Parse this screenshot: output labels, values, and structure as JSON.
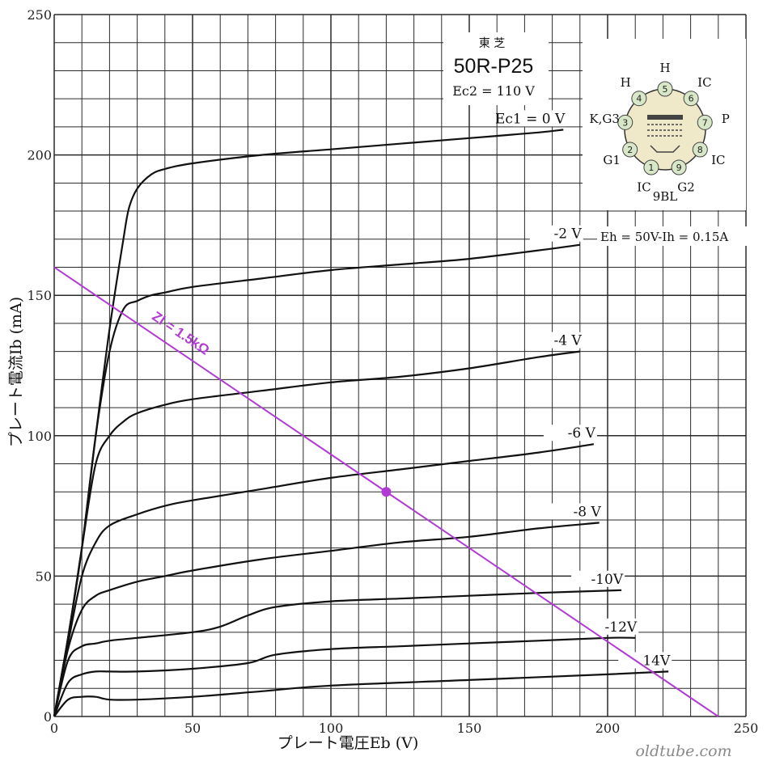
{
  "chart_data": {
    "type": "line",
    "header_brand": "東 芝",
    "title": "50R-P25",
    "subtitle": "Ec2 = 110 V",
    "xlabel": "プレート電圧Eb (V)",
    "ylabel": "プレート電流Ib (mA)",
    "xlim": [
      0,
      250
    ],
    "ylim": [
      0,
      250
    ],
    "xticks": [
      0,
      50,
      100,
      150,
      200,
      250
    ],
    "yticks": [
      0,
      50,
      100,
      150,
      200,
      250
    ],
    "grid": true,
    "heater_note": "Eh = 50V-Ih = 0.15A",
    "base_label": "9BL",
    "pin_labels": [
      {
        "pin": "1",
        "name": "IC"
      },
      {
        "pin": "2",
        "name": "G1"
      },
      {
        "pin": "3",
        "name": "K,G3"
      },
      {
        "pin": "4",
        "name": "H"
      },
      {
        "pin": "5",
        "name": "H"
      },
      {
        "pin": "6",
        "name": "IC"
      },
      {
        "pin": "7",
        "name": "P"
      },
      {
        "pin": "8",
        "name": "IC"
      },
      {
        "pin": "9",
        "name": "G2"
      }
    ],
    "series": [
      {
        "name": "Ec1 = 0 V",
        "x": [
          0,
          5,
          10,
          15,
          20,
          25,
          27,
          30,
          35,
          40,
          50,
          75,
          100,
          125,
          150,
          175,
          184
        ],
        "y": [
          0,
          28,
          60,
          100,
          138,
          170,
          181,
          188,
          193,
          195,
          197,
          200,
          202,
          204,
          206,
          208,
          209
        ]
      },
      {
        "name": "-2 V",
        "x": [
          0,
          5,
          10,
          15,
          20,
          25,
          30,
          35,
          40,
          50,
          75,
          100,
          125,
          150,
          175,
          190
        ],
        "y": [
          0,
          28,
          60,
          100,
          130,
          145,
          148,
          150,
          151,
          153,
          156,
          159,
          161,
          163,
          166,
          168
        ]
      },
      {
        "name": "-4 V",
        "x": [
          0,
          5,
          10,
          15,
          20,
          25,
          30,
          40,
          50,
          75,
          100,
          125,
          150,
          175,
          190
        ],
        "y": [
          0,
          28,
          60,
          90,
          100,
          105,
          108,
          111,
          113,
          116,
          119,
          121,
          124,
          128,
          130
        ]
      },
      {
        "name": "-6 V",
        "x": [
          0,
          5,
          10,
          15,
          20,
          30,
          40,
          50,
          75,
          100,
          125,
          150,
          175,
          195
        ],
        "y": [
          0,
          26,
          50,
          62,
          68,
          72,
          75,
          77,
          81,
          85,
          88,
          91,
          94,
          97
        ]
      },
      {
        "name": "-8 V",
        "x": [
          0,
          5,
          10,
          15,
          20,
          30,
          40,
          50,
          75,
          100,
          125,
          150,
          175,
          197
        ],
        "y": [
          0,
          24,
          38,
          43,
          45,
          48,
          50,
          52,
          56,
          59,
          62,
          64,
          67,
          69
        ]
      },
      {
        "name": "-10V",
        "x": [
          0,
          5,
          10,
          15,
          20,
          30,
          50,
          60,
          70,
          80,
          100,
          125,
          150,
          175,
          205
        ],
        "y": [
          0,
          20,
          25,
          26,
          27,
          28,
          30,
          32,
          36,
          39,
          41,
          42,
          43,
          44,
          45
        ]
      },
      {
        "name": "-12V",
        "x": [
          0,
          5,
          10,
          15,
          20,
          30,
          50,
          70,
          80,
          100,
          125,
          150,
          175,
          200,
          210
        ],
        "y": [
          0,
          12,
          15,
          16,
          16,
          16,
          17,
          19,
          22,
          24,
          25,
          26,
          27,
          28,
          28
        ]
      },
      {
        "name": "14V",
        "x": [
          0,
          5,
          10,
          15,
          20,
          30,
          50,
          75,
          100,
          150,
          200,
          222
        ],
        "y": [
          0,
          6,
          7,
          7,
          6,
          6,
          7,
          9,
          11,
          13,
          15,
          16
        ]
      }
    ],
    "load_line": {
      "label": "Zl = 1.5kΩ",
      "x": [
        0,
        240
      ],
      "y": [
        160,
        0
      ]
    },
    "operating_point": {
      "x": 120,
      "y": 80
    }
  },
  "colors": {
    "grid": "#2a2a2a",
    "curve": "#111111",
    "load_line": "#b13bd4"
  },
  "watermark": "oldtube.com"
}
